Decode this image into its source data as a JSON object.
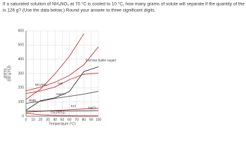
{
  "question": [
    "If a saturated solution of NH₄NO₃ at 70 °C is cooled to 10 °C, how many grams of solute will separate if the quantity of the solvent",
    "is 126 g? (Use the data below.) Round your answer to three significant digits."
  ],
  "chart_data": {
    "type": "line",
    "ylabel": [
      "grams",
      "100 g H₂O"
    ],
    "xlabel": "Temperature (°C)",
    "x": [
      0,
      20,
      40,
      60,
      80,
      100
    ],
    "xlim": [
      0,
      100
    ],
    "xticks": [
      0,
      10,
      20,
      30,
      40,
      50,
      60,
      70,
      80,
      90,
      100
    ],
    "ylim": [
      0,
      600
    ],
    "yticks": [
      0,
      100,
      200,
      300,
      400,
      500,
      600
    ],
    "grid": true,
    "series": [
      {
        "name": "NH₄NO₃",
        "color": "#c8323a",
        "values": [
          118,
          190,
          297,
          421,
          580,
          null
        ]
      },
      {
        "name": "Sucrose (table sugar)",
        "color": "#c8323a",
        "values": [
          179,
          204,
          238,
          287,
          362,
          487
        ]
      },
      {
        "name": "NaI",
        "color": "#c8323a",
        "values": [
          159,
          178,
          205,
          257,
          295,
          302
        ]
      },
      {
        "name": "NaOH",
        "color": "#333333",
        "values": [
          42,
          109,
          129,
          174,
          314,
          347
        ]
      },
      {
        "name": "RbBr",
        "color": "#555555",
        "values": [
          90,
          105,
          125,
          140,
          155,
          175
        ]
      },
      {
        "name": "KCl",
        "color": "#c8323a",
        "values": [
          28,
          34,
          40,
          45,
          51,
          56
        ]
      },
      {
        "name": "NaCl",
        "color": "#333333",
        "values": [
          36,
          36,
          37,
          37,
          38,
          39
        ]
      },
      {
        "name": "Ce₂(SO₄)₃",
        "color": "#c8323a",
        "values": [
          20,
          10,
          6,
          4,
          3,
          2
        ]
      }
    ]
  }
}
